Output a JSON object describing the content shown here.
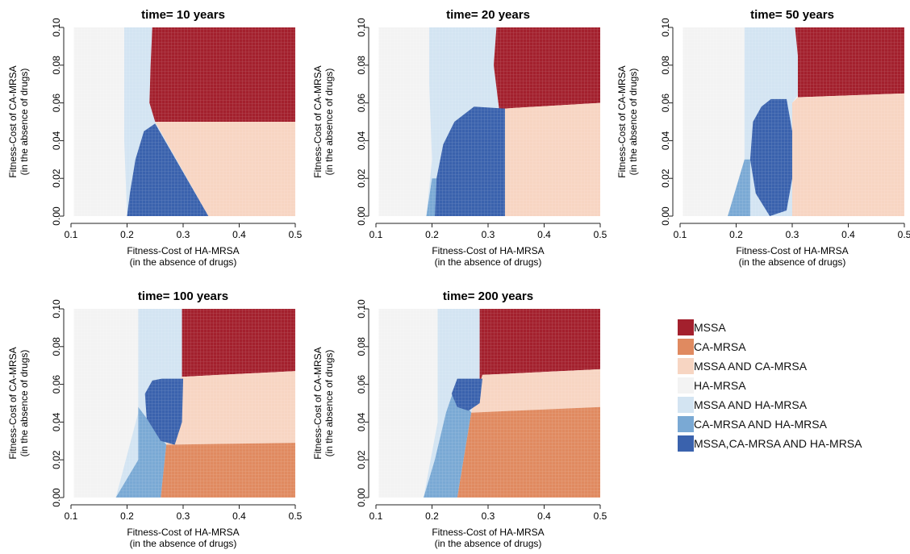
{
  "chart_data": {
    "type": "heatmap",
    "shared": {
      "xlabel": [
        "Fitness-Cost of HA-MRSA",
        "(in the absence of drugs)"
      ],
      "ylabel": [
        "Fitness-Cost of CA-MRSA",
        "(in the absence of drugs)"
      ],
      "xlim": [
        0.1,
        0.5
      ],
      "ylim": [
        0,
        0.1
      ],
      "xticks": [
        0.1,
        0.2,
        0.3,
        0.4,
        0.5
      ],
      "xtick_labels": [
        "0.1",
        "0.2",
        "0.3",
        "0.4",
        "0.5"
      ],
      "yticks": [
        0,
        0.02,
        0.04,
        0.06,
        0.08,
        0.1
      ],
      "ytick_labels": [
        "0.00",
        "0.02",
        "0.04",
        "0.06",
        "0.08",
        "0.10"
      ],
      "data_xmin": 0.105,
      "grid": false
    },
    "categories": [
      {
        "key": "MSSA",
        "label": "MSSA",
        "color": "#a3202d"
      },
      {
        "key": "CA",
        "label": "CA-MRSA",
        "color": "#e08a60"
      },
      {
        "key": "MSSA_CA",
        "label": "MSSA AND CA-MRSA",
        "color": "#f7d5c2"
      },
      {
        "key": "HA",
        "label": "HA-MRSA",
        "color": "#f3f3f3"
      },
      {
        "key": "MSSA_HA",
        "label": "MSSA AND HA-MRSA",
        "color": "#d3e4f2"
      },
      {
        "key": "CA_HA",
        "label": "CA-MRSA AND HA-MRSA",
        "color": "#7aa9d4"
      },
      {
        "key": "ALL",
        "label": "MSSA,CA-MRSA AND HA-MRSA",
        "color": "#3a62ad"
      }
    ],
    "legend_position": "bottom-right",
    "panels": [
      {
        "title": "time= 10 years",
        "regions": [
          {
            "key": "HA",
            "points": [
              [
                0.105,
                0
              ],
              [
                0.5,
                0
              ],
              [
                0.5,
                0.1
              ],
              [
                0.105,
                0.1
              ]
            ]
          },
          {
            "key": "MSSA_HA",
            "points": [
              [
                0.195,
                0.1
              ],
              [
                0.245,
                0.1
              ],
              [
                0.242,
                0.08
              ],
              [
                0.24,
                0.06
              ],
              [
                0.25,
                0.05
              ],
              [
                0.345,
                0
              ],
              [
                0.2,
                0
              ],
              [
                0.195,
                0.04
              ]
            ]
          },
          {
            "key": "MSSA",
            "points": [
              [
                0.245,
                0.1
              ],
              [
                0.5,
                0.1
              ],
              [
                0.5,
                0.05
              ],
              [
                0.25,
                0.05
              ],
              [
                0.24,
                0.06
              ],
              [
                0.242,
                0.08
              ]
            ]
          },
          {
            "key": "MSSA_CA",
            "points": [
              [
                0.25,
                0.05
              ],
              [
                0.5,
                0.05
              ],
              [
                0.5,
                0
              ],
              [
                0.345,
                0
              ]
            ]
          },
          {
            "key": "ALL",
            "points": [
              [
                0.25,
                0.049
              ],
              [
                0.345,
                0
              ],
              [
                0.2,
                0
              ],
              [
                0.205,
                0.012
              ],
              [
                0.215,
                0.03
              ],
              [
                0.23,
                0.045
              ]
            ]
          }
        ]
      },
      {
        "title": "time= 20 years",
        "regions": [
          {
            "key": "HA",
            "points": [
              [
                0.105,
                0
              ],
              [
                0.5,
                0
              ],
              [
                0.5,
                0.1
              ],
              [
                0.105,
                0.1
              ]
            ]
          },
          {
            "key": "MSSA_HA",
            "points": [
              [
                0.195,
                0.1
              ],
              [
                0.315,
                0.1
              ],
              [
                0.31,
                0.08
              ],
              [
                0.32,
                0.056
              ],
              [
                0.33,
                0
              ],
              [
                0.19,
                0
              ],
              [
                0.2,
                0.03
              ],
              [
                0.195,
                0.07
              ]
            ]
          },
          {
            "key": "MSSA",
            "points": [
              [
                0.315,
                0.1
              ],
              [
                0.5,
                0.1
              ],
              [
                0.5,
                0.06
              ],
              [
                0.33,
                0.057
              ],
              [
                0.32,
                0.056
              ],
              [
                0.31,
                0.08
              ]
            ]
          },
          {
            "key": "MSSA_CA",
            "points": [
              [
                0.33,
                0.057
              ],
              [
                0.5,
                0.06
              ],
              [
                0.5,
                0
              ],
              [
                0.33,
                0
              ]
            ]
          },
          {
            "key": "CA_HA",
            "points": [
              [
                0.19,
                0
              ],
              [
                0.205,
                0
              ],
              [
                0.208,
                0.02
              ],
              [
                0.2,
                0.02
              ]
            ]
          },
          {
            "key": "ALL",
            "points": [
              [
                0.275,
                0.058
              ],
              [
                0.33,
                0.057
              ],
              [
                0.33,
                0
              ],
              [
                0.205,
                0
              ],
              [
                0.208,
                0.02
              ],
              [
                0.22,
                0.038
              ],
              [
                0.24,
                0.05
              ]
            ]
          }
        ]
      },
      {
        "title": "time= 50 years",
        "regions": [
          {
            "key": "HA",
            "points": [
              [
                0.105,
                0
              ],
              [
                0.5,
                0
              ],
              [
                0.5,
                0.1
              ],
              [
                0.105,
                0.1
              ]
            ]
          },
          {
            "key": "MSSA_HA",
            "points": [
              [
                0.215,
                0.1
              ],
              [
                0.305,
                0.1
              ],
              [
                0.31,
                0.085
              ],
              [
                0.31,
                0.064
              ],
              [
                0.3,
                0.06
              ],
              [
                0.3,
                0
              ],
              [
                0.185,
                0
              ],
              [
                0.215,
                0.03
              ]
            ]
          },
          {
            "key": "MSSA",
            "points": [
              [
                0.305,
                0.1
              ],
              [
                0.5,
                0.1
              ],
              [
                0.5,
                0.065
              ],
              [
                0.31,
                0.063
              ],
              [
                0.31,
                0.085
              ]
            ]
          },
          {
            "key": "MSSA_CA",
            "points": [
              [
                0.31,
                0.063
              ],
              [
                0.5,
                0.065
              ],
              [
                0.5,
                0
              ],
              [
                0.3,
                0
              ],
              [
                0.3,
                0.06
              ]
            ]
          },
          {
            "key": "CA_HA",
            "points": [
              [
                0.185,
                0
              ],
              [
                0.225,
                0
              ],
              [
                0.225,
                0.03
              ],
              [
                0.215,
                0.03
              ]
            ]
          },
          {
            "key": "ALL",
            "points": [
              [
                0.262,
                0.062
              ],
              [
                0.29,
                0.062
              ],
              [
                0.3,
                0.045
              ],
              [
                0.3,
                0.02
              ],
              [
                0.29,
                0.003
              ],
              [
                0.26,
                0
              ],
              [
                0.235,
                0.012
              ],
              [
                0.225,
                0.03
              ],
              [
                0.23,
                0.05
              ],
              [
                0.245,
                0.058
              ]
            ]
          }
        ]
      },
      {
        "title": "time= 100 years",
        "regions": [
          {
            "key": "HA",
            "points": [
              [
                0.105,
                0
              ],
              [
                0.5,
                0
              ],
              [
                0.5,
                0.1
              ],
              [
                0.105,
                0.1
              ]
            ]
          },
          {
            "key": "MSSA_HA",
            "points": [
              [
                0.22,
                0.1
              ],
              [
                0.298,
                0.1
              ],
              [
                0.298,
                0.064
              ],
              [
                0.29,
                0.03
              ],
              [
                0.26,
                0
              ],
              [
                0.18,
                0
              ],
              [
                0.22,
                0.045
              ]
            ]
          },
          {
            "key": "MSSA",
            "points": [
              [
                0.298,
                0.1
              ],
              [
                0.5,
                0.1
              ],
              [
                0.5,
                0.067
              ],
              [
                0.298,
                0.064
              ]
            ]
          },
          {
            "key": "MSSA_CA",
            "points": [
              [
                0.298,
                0.064
              ],
              [
                0.5,
                0.067
              ],
              [
                0.5,
                0.029
              ],
              [
                0.27,
                0.028
              ],
              [
                0.27,
                0.05
              ]
            ]
          },
          {
            "key": "CA",
            "points": [
              [
                0.26,
                0
              ],
              [
                0.5,
                0
              ],
              [
                0.5,
                0.029
              ],
              [
                0.27,
                0.028
              ]
            ]
          },
          {
            "key": "CA_HA",
            "points": [
              [
                0.18,
                0
              ],
              [
                0.26,
                0
              ],
              [
                0.27,
                0.028
              ],
              [
                0.22,
                0.048
              ],
              [
                0.22,
                0.02
              ]
            ]
          },
          {
            "key": "ALL",
            "points": [
              [
                0.262,
                0.063
              ],
              [
                0.3,
                0.063
              ],
              [
                0.298,
                0.04
              ],
              [
                0.285,
                0.028
              ],
              [
                0.26,
                0.03
              ],
              [
                0.235,
                0.042
              ],
              [
                0.232,
                0.055
              ],
              [
                0.245,
                0.062
              ]
            ]
          }
        ]
      },
      {
        "title": "time= 200 years",
        "regions": [
          {
            "key": "HA",
            "points": [
              [
                0.105,
                0
              ],
              [
                0.5,
                0
              ],
              [
                0.5,
                0.1
              ],
              [
                0.105,
                0.1
              ]
            ]
          },
          {
            "key": "MSSA_HA",
            "points": [
              [
                0.21,
                0.1
              ],
              [
                0.285,
                0.1
              ],
              [
                0.285,
                0.06
              ],
              [
                0.27,
                0.04
              ],
              [
                0.24,
                0.02
              ],
              [
                0.185,
                0
              ],
              [
                0.21,
                0.04
              ]
            ]
          },
          {
            "key": "MSSA",
            "points": [
              [
                0.285,
                0.1
              ],
              [
                0.5,
                0.1
              ],
              [
                0.5,
                0.068
              ],
              [
                0.29,
                0.065
              ],
              [
                0.285,
                0.06
              ]
            ]
          },
          {
            "key": "MSSA_CA",
            "points": [
              [
                0.29,
                0.065
              ],
              [
                0.5,
                0.068
              ],
              [
                0.5,
                0.048
              ],
              [
                0.27,
                0.045
              ],
              [
                0.28,
                0.055
              ]
            ]
          },
          {
            "key": "CA",
            "points": [
              [
                0.245,
                0
              ],
              [
                0.5,
                0
              ],
              [
                0.5,
                0.048
              ],
              [
                0.27,
                0.045
              ]
            ]
          },
          {
            "key": "CA_HA",
            "points": [
              [
                0.185,
                0
              ],
              [
                0.245,
                0
              ],
              [
                0.27,
                0.045
              ],
              [
                0.24,
                0.058
              ],
              [
                0.225,
                0.045
              ],
              [
                0.205,
                0.02
              ]
            ]
          },
          {
            "key": "ALL",
            "points": [
              [
                0.245,
                0.063
              ],
              [
                0.29,
                0.063
              ],
              [
                0.285,
                0.05
              ],
              [
                0.265,
                0.046
              ],
              [
                0.245,
                0.048
              ],
              [
                0.235,
                0.055
              ]
            ]
          }
        ]
      }
    ]
  }
}
